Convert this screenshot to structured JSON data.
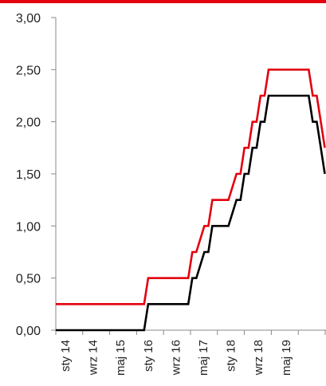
{
  "chart_data": {
    "type": "line",
    "title": "",
    "xlabel": "",
    "ylabel": "",
    "ylim": [
      0,
      3
    ],
    "yticks": [
      "0,00",
      "0,50",
      "1,00",
      "1,50",
      "2,00",
      "2,50",
      "3,00"
    ],
    "yticks_values": [
      0,
      0.5,
      1,
      1.5,
      2,
      2.5,
      3
    ],
    "xticks": [
      "sty 14",
      "wrz 14",
      "maj 15",
      "sty 16",
      "wrz 16",
      "maj 17",
      "sty 18",
      "wrz 18",
      "maj 19"
    ],
    "grid": false,
    "legend": "none",
    "colors": {
      "series_red": "#e3000f",
      "series_black": "#000000",
      "axis": "#888888",
      "top_rule": "#e3000f"
    },
    "series": [
      {
        "color": "#e3000f",
        "x": [
          "2014-01",
          "2014-05",
          "2014-09",
          "2015-01",
          "2015-05",
          "2015-09",
          "2015-11",
          "2015-12",
          "2016-04",
          "2016-08",
          "2016-10",
          "2016-11",
          "2016-12",
          "2017-02",
          "2017-03",
          "2017-04",
          "2017-06",
          "2017-08",
          "2017-10",
          "2017-11",
          "2017-12",
          "2018-01",
          "2018-02",
          "2018-03",
          "2018-04",
          "2018-05",
          "2018-06",
          "2018-07",
          "2018-08",
          "2018-09",
          "2018-10",
          "2018-11",
          "2018-12",
          "2019-04",
          "2019-05",
          "2019-06",
          "2019-07",
          "2019-08"
        ],
        "values": [
          0.25,
          0.25,
          0.25,
          0.25,
          0.25,
          0.25,
          0.25,
          0.5,
          0.5,
          0.5,
          0.5,
          0.75,
          0.75,
          1.0,
          1.0,
          1.25,
          1.25,
          1.25,
          1.5,
          1.5,
          1.75,
          1.75,
          2.0,
          2.0,
          2.25,
          2.25,
          2.5,
          2.5,
          2.5,
          2.5,
          2.5,
          2.5,
          2.5,
          2.5,
          2.25,
          2.25,
          2.0,
          1.75
        ]
      },
      {
        "color": "#000000",
        "x": [
          "2014-01",
          "2014-05",
          "2014-09",
          "2015-01",
          "2015-05",
          "2015-09",
          "2015-11",
          "2015-12",
          "2016-04",
          "2016-08",
          "2016-10",
          "2016-11",
          "2016-12",
          "2017-02",
          "2017-03",
          "2017-04",
          "2017-06",
          "2017-08",
          "2017-10",
          "2017-11",
          "2017-12",
          "2018-01",
          "2018-02",
          "2018-03",
          "2018-04",
          "2018-05",
          "2018-06",
          "2018-07",
          "2018-08",
          "2018-09",
          "2018-10",
          "2018-11",
          "2018-12",
          "2019-04",
          "2019-05",
          "2019-06",
          "2019-07",
          "2019-08"
        ],
        "values": [
          0,
          0,
          0,
          0,
          0,
          0,
          0,
          0.25,
          0.25,
          0.25,
          0.25,
          0.5,
          0.5,
          0.75,
          0.75,
          1.0,
          1.0,
          1.0,
          1.25,
          1.25,
          1.5,
          1.5,
          1.75,
          1.75,
          2.0,
          2.0,
          2.25,
          2.25,
          2.25,
          2.25,
          2.25,
          2.25,
          2.25,
          2.25,
          2.0,
          2.0,
          1.75,
          1.5
        ]
      }
    ]
  }
}
